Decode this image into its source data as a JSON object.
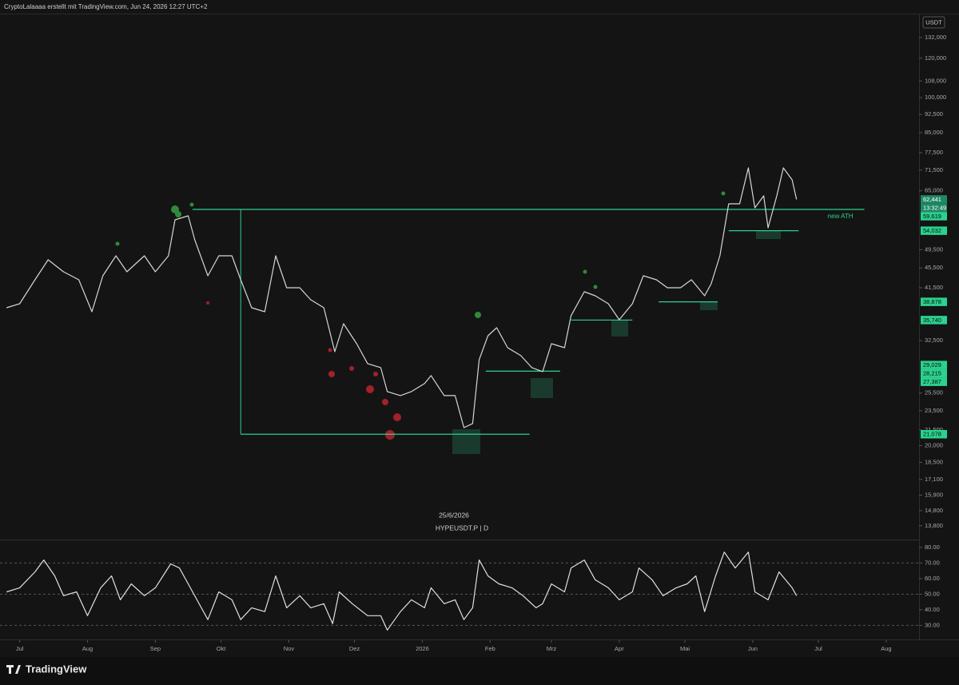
{
  "header": "CryptoLalaaaa erstellt mit TradingView.com, Jun 24, 2026 12:27 UTC+2",
  "currency": "USDT",
  "date_label": "25/6/2026",
  "symbol": "HYPEUSDT.P | D",
  "countdown": "13:32:49",
  "logo": "TradingView",
  "chart_data": [
    {
      "type": "line",
      "log_scale": true,
      "color": "#d6d6d6",
      "x": [
        -6,
        0,
        7,
        13,
        20,
        27,
        33,
        38,
        44,
        49,
        57,
        62,
        68,
        71,
        77,
        80,
        86,
        91,
        97,
        101,
        106,
        112,
        117,
        122,
        128,
        133,
        139,
        144,
        148,
        154,
        159,
        165,
        168,
        174,
        179,
        185,
        188,
        194,
        199,
        203,
        207,
        210,
        214,
        218,
        223,
        229,
        234,
        239,
        243,
        249,
        252,
        258,
        263,
        269,
        274,
        280,
        285,
        291,
        296,
        302,
        307,
        313,
        316,
        320,
        324,
        329,
        333,
        336,
        340,
        342,
        346,
        349,
        353,
        355
      ],
      "values": [
        37840,
        38540,
        43060,
        47240,
        44690,
        43060,
        37140,
        43870,
        48110,
        44690,
        48110,
        44690,
        48110,
        56820,
        57880,
        51800,
        43870,
        48110,
        48110,
        43060,
        37840,
        37140,
        48110,
        41500,
        41500,
        39260,
        37840,
        30880,
        35140,
        32040,
        29220,
        28680,
        25670,
        25200,
        25670,
        26640,
        27640,
        25200,
        25200,
        21730,
        22140,
        29760,
        33250,
        34500,
        31450,
        30320,
        28680,
        28160,
        32040,
        31450,
        36470,
        40740,
        40000,
        38540,
        35800,
        38540,
        43870,
        43060,
        41500,
        41500,
        43060,
        40000,
        42280,
        48110,
        61180,
        61180,
        72250,
        60060,
        63480,
        54760,
        63480,
        72250,
        68350,
        62441
      ],
      "xlim": [
        -9,
        411
      ],
      "xticks": [
        {
          "value": 0,
          "label": "Jul"
        },
        {
          "value": 31,
          "label": "Aug"
        },
        {
          "value": 62,
          "label": "Sep"
        },
        {
          "value": 92,
          "label": "Okt"
        },
        {
          "value": 123,
          "label": "Nov"
        },
        {
          "value": 153,
          "label": "Dez"
        },
        {
          "value": 184,
          "label": "2026"
        },
        {
          "value": 215,
          "label": "Feb"
        },
        {
          "value": 243,
          "label": "Mrz"
        },
        {
          "value": 274,
          "label": "Apr"
        },
        {
          "value": 304,
          "label": "Mai"
        },
        {
          "value": 335,
          "label": "Jun"
        },
        {
          "value": 365,
          "label": "Jul"
        },
        {
          "value": 396,
          "label": "Aug"
        }
      ],
      "ylim": [
        12950,
        147500
      ],
      "yticks": [
        {
          "value": 132000,
          "label": "132,000"
        },
        {
          "value": 120000,
          "label": "120,000"
        },
        {
          "value": 108000,
          "label": "108,000"
        },
        {
          "value": 100000,
          "label": "100,000"
        },
        {
          "value": 92500,
          "label": "92,500"
        },
        {
          "value": 85000,
          "label": "85,000"
        },
        {
          "value": 77500,
          "label": "77,500"
        },
        {
          "value": 71500,
          "label": "71,500"
        },
        {
          "value": 65000,
          "label": "65,000"
        },
        {
          "value": 49500,
          "label": "49,500"
        },
        {
          "value": 45500,
          "label": "45,500"
        },
        {
          "value": 41500,
          "label": "41,500"
        },
        {
          "value": 32500,
          "label": "32,500"
        },
        {
          "value": 25500,
          "label": "25,500"
        },
        {
          "value": 23500,
          "label": "23,500"
        },
        {
          "value": 21500,
          "label": "21,500"
        },
        {
          "value": 20000,
          "label": "20,000"
        },
        {
          "value": 18500,
          "label": "18,500"
        },
        {
          "value": 17100,
          "label": "17,100"
        },
        {
          "value": 15900,
          "label": "15,900"
        },
        {
          "value": 14800,
          "label": "14,800"
        },
        {
          "value": 13800,
          "label": "13,800"
        }
      ],
      "price_labels": [
        {
          "value": 62441,
          "label": "62,441",
          "color": "#1f8a66"
        },
        {
          "value": 59619,
          "label": "59,619",
          "color": "#2bd18e",
          "from": 79,
          "to": 386,
          "note": "new ATH"
        },
        {
          "value": 54032,
          "label": "54,032",
          "color": "#2bd18e",
          "from": 324,
          "to": 356
        },
        {
          "value": 38878,
          "label": "38,878",
          "color": "#2bd18e",
          "from": 292,
          "to": 319
        },
        {
          "value": 35740,
          "label": "35,740",
          "color": "#2bd18e",
          "from": 252,
          "to": 280
        },
        {
          "value": 29029,
          "label": "29,029",
          "color": "#2bd18e"
        },
        {
          "value": 28215,
          "label": "28,215",
          "color": "#2bd18e",
          "from": 213,
          "to": 247
        },
        {
          "value": 27387,
          "label": "27,387",
          "color": "#2bd18e"
        },
        {
          "value": 21078,
          "label": "21,078",
          "color": "#2bd18e",
          "from": 101,
          "to": 233
        }
      ]
    },
    {
      "type": "line",
      "color": "#e0e0e0",
      "x": [
        -6,
        0,
        7,
        11,
        16,
        20,
        26,
        31,
        37,
        42,
        46,
        51,
        57,
        62,
        69,
        73,
        79,
        86,
        91,
        97,
        101,
        106,
        112,
        117,
        122,
        128,
        133,
        139,
        143,
        146,
        152,
        159,
        165,
        168,
        174,
        179,
        185,
        188,
        194,
        199,
        203,
        207,
        210,
        214,
        219,
        225,
        230,
        236,
        239,
        243,
        249,
        252,
        258,
        263,
        269,
        274,
        280,
        283,
        289,
        294,
        300,
        305,
        309,
        313,
        318,
        322,
        327,
        333,
        336,
        342,
        347,
        353,
        355
      ],
      "values": [
        51.5,
        54.1,
        64.3,
        71.9,
        61.7,
        49,
        51.5,
        36.2,
        54.1,
        61.7,
        46.4,
        56.6,
        49,
        54.1,
        69.4,
        66.8,
        51.5,
        33.7,
        51.5,
        46.4,
        33.7,
        41.3,
        38.8,
        61.7,
        41.3,
        49,
        41.3,
        43.9,
        31.1,
        51.5,
        43.9,
        36.2,
        36.2,
        27,
        38.8,
        46.4,
        41.3,
        54.1,
        43.9,
        46.4,
        33.7,
        41.3,
        71.9,
        61.7,
        56.6,
        54.1,
        49,
        41.3,
        43.9,
        56.6,
        51.5,
        66.8,
        71.9,
        59.2,
        54.1,
        46.4,
        51.5,
        66.8,
        59.2,
        49,
        54.1,
        56.6,
        61.7,
        38.8,
        61.7,
        77,
        66.8,
        77,
        51.5,
        46.4,
        64.3,
        54.1,
        49
      ],
      "ylim": [
        21,
        84
      ],
      "yticks": [
        {
          "value": 80,
          "label": "80.00"
        },
        {
          "value": 70,
          "label": "70.00"
        },
        {
          "value": 60,
          "label": "60.00"
        },
        {
          "value": 50,
          "label": "50.00"
        },
        {
          "value": 40,
          "label": "40.00"
        },
        {
          "value": 30,
          "label": "30.00"
        }
      ],
      "hlines": [
        70,
        50,
        30
      ]
    }
  ]
}
